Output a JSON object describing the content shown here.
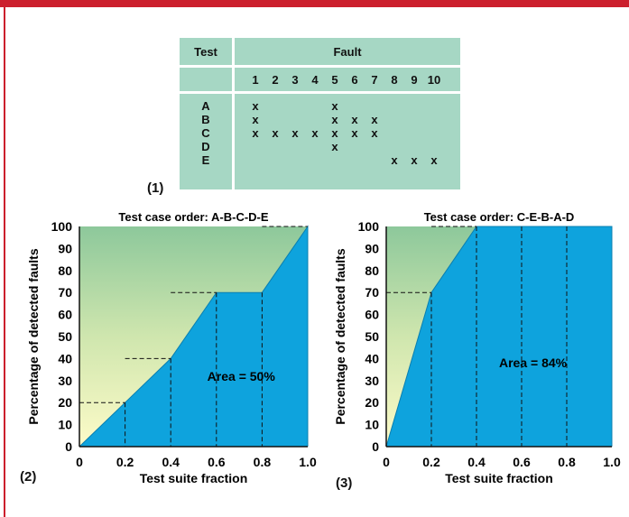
{
  "table": {
    "label": "(1)",
    "header_test": "Test",
    "header_fault": "Fault",
    "fault_numbers": [
      "1",
      "2",
      "3",
      "4",
      "5",
      "6",
      "7",
      "8",
      "9",
      "10"
    ],
    "tests": [
      "A",
      "B",
      "C",
      "D",
      "E"
    ],
    "detections": [
      [
        "x",
        "",
        "",
        "",
        "x",
        "",
        "",
        "",
        "",
        ""
      ],
      [
        "x",
        "",
        "",
        "",
        "x",
        "x",
        "x",
        "",
        "",
        ""
      ],
      [
        "x",
        "x",
        "x",
        "x",
        "x",
        "x",
        "x",
        "",
        "",
        ""
      ],
      [
        "",
        "",
        "",
        "",
        "x",
        "",
        "",
        "",
        "",
        ""
      ],
      [
        "",
        "",
        "",
        "",
        "",
        "",
        "",
        "x",
        "x",
        "x"
      ]
    ]
  },
  "colors": {
    "fill": "#0ea3dd",
    "table_bg": "#a6d7c4",
    "accent": "#cc1f2d"
  },
  "chart_data": [
    {
      "type": "area",
      "panel_label": "(2)",
      "title": "Test case order: A-B-C-D-E",
      "xlabel": "Test suite fraction",
      "ylabel": "Percentage of detected faults",
      "xlim": [
        0,
        1.0
      ],
      "ylim": [
        0,
        100
      ],
      "xticks": [
        "0",
        "0.2",
        "0.4",
        "0.6",
        "0.8",
        "1.0"
      ],
      "yticks": [
        "0",
        "10",
        "20",
        "30",
        "40",
        "50",
        "60",
        "70",
        "80",
        "90",
        "100"
      ],
      "x": [
        0,
        0.2,
        0.4,
        0.6,
        0.8,
        1.0
      ],
      "y": [
        0,
        20,
        40,
        70,
        70,
        100
      ],
      "annotation": "Area = 50%"
    },
    {
      "type": "area",
      "panel_label": "(3)",
      "title": "Test case order: C-E-B-A-D",
      "xlabel": "Test suite fraction",
      "ylabel": "Percentage of detected faults",
      "xlim": [
        0,
        1.0
      ],
      "ylim": [
        0,
        100
      ],
      "xticks": [
        "0",
        "0.2",
        "0.4",
        "0.6",
        "0.8",
        "1.0"
      ],
      "yticks": [
        "0",
        "10",
        "20",
        "30",
        "40",
        "50",
        "60",
        "70",
        "80",
        "90",
        "100"
      ],
      "x": [
        0,
        0.2,
        0.4,
        0.6,
        0.8,
        1.0
      ],
      "y": [
        0,
        70,
        100,
        100,
        100,
        100
      ],
      "annotation": "Area = 84%"
    }
  ]
}
